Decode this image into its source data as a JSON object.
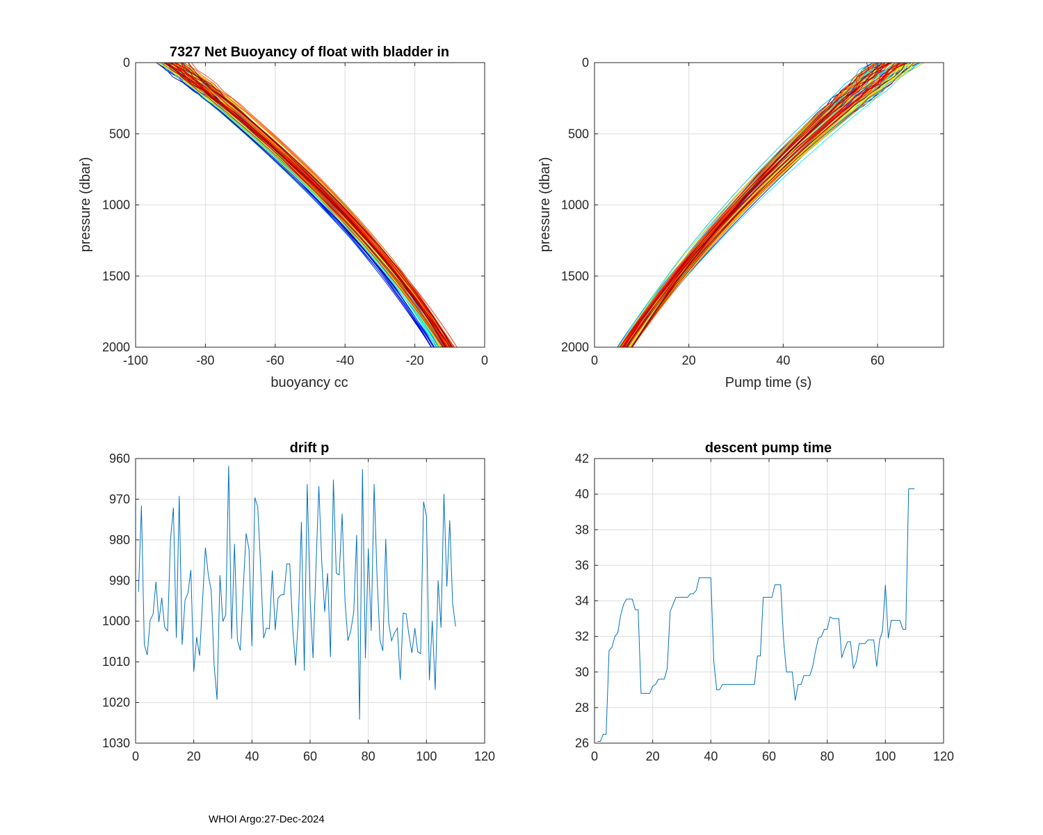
{
  "footer": "WHOI Argo:27-Dec-2024",
  "chart_data": [
    {
      "id": "buoyancy",
      "type": "line",
      "title": "7327 Net Buoyancy of float with bladder in",
      "xlabel": "buoyancy cc",
      "ylabel": "pressure (dbar)",
      "xlim": [
        -100,
        0
      ],
      "ylim": [
        0,
        2000
      ],
      "y_reversed": true,
      "xticks": [
        -100,
        -80,
        -60,
        -40,
        -20,
        0
      ],
      "yticks": [
        0,
        500,
        1000,
        1500,
        2000
      ],
      "grid": true,
      "colormap": "jet",
      "profile_count": 110,
      "profile_model": {
        "description": "each cycle profile: buoyancy(p) = b_surface + (b_2000 - b_surface) * f(p/2000), f concave; colored by cycle number (blue early, red late)",
        "b_surface_range": [
          -97,
          -82
        ],
        "b_2000_range": [
          -17,
          -6
        ],
        "curvature": 0.35
      }
    },
    {
      "id": "pumptime",
      "type": "line",
      "title": "",
      "xlabel": "Pump time (s)",
      "ylabel": "pressure (dbar)",
      "xlim": [
        0,
        74
      ],
      "ylim": [
        0,
        2000
      ],
      "y_reversed": true,
      "xticks": [
        0,
        20,
        40,
        60
      ],
      "yticks": [
        0,
        500,
        1000,
        1500,
        2000
      ],
      "grid": true,
      "colormap": "jet",
      "profile_count": 110,
      "profile_model": {
        "description": "each cycle profile: pump time decreasing with pressure, from ~55-74 s at surface to ~3-10 s at 2000 dbar; colored by cycle number",
        "t_surface_range": [
          55,
          73
        ],
        "t_2000_range": [
          4,
          9
        ],
        "curvature": 0.3
      }
    },
    {
      "id": "driftp",
      "type": "line",
      "title": "drift p",
      "xlabel": "",
      "ylabel": "",
      "xlim": [
        0,
        120
      ],
      "ylim": [
        960,
        1030
      ],
      "y_reversed": true,
      "xticks": [
        0,
        20,
        40,
        60,
        80,
        100,
        120
      ],
      "yticks": [
        960,
        970,
        980,
        990,
        1000,
        1010,
        1020,
        1030
      ],
      "grid": true,
      "color": "#0072BD",
      "x": [
        1,
        2,
        3,
        4,
        5,
        6,
        7,
        8,
        9,
        10,
        11,
        12,
        13,
        14,
        15,
        16,
        17,
        18,
        19,
        20,
        21,
        22,
        23,
        24,
        25,
        26,
        27,
        28,
        29,
        30,
        31,
        32,
        33,
        34,
        35,
        36,
        37,
        38,
        39,
        40,
        41,
        42,
        43,
        44,
        45,
        46,
        47,
        48,
        49,
        50,
        51,
        52,
        53,
        54,
        55,
        56,
        57,
        58,
        59,
        60,
        61,
        62,
        63,
        64,
        65,
        66,
        67,
        68,
        69,
        70,
        71,
        72,
        73,
        74,
        75,
        76,
        77,
        78,
        79,
        80,
        81,
        82,
        83,
        84,
        85,
        86,
        87,
        88,
        89,
        90,
        91,
        92,
        93,
        94,
        95,
        96,
        97,
        98,
        99,
        100,
        101,
        102,
        103,
        104,
        105,
        106,
        107,
        108,
        109,
        110
      ],
      "values": [
        992.8,
        971.6,
        1005.8,
        1008.3,
        999.8,
        998.3,
        990.3,
        1000.2,
        994.2,
        1001.5,
        1002.4,
        979.9,
        972.1,
        1004.1,
        969.2,
        1005.8,
        994.8,
        993.1,
        987.4,
        1012.4,
        1003.9,
        1008.5,
        995.3,
        981.9,
        988.6,
        992.5,
        1010.8,
        1019.3,
        988.7,
        1000.1,
        998.4,
        961.8,
        1004.4,
        981.0,
        1004.6,
        1007.2,
        992.1,
        978.4,
        982.4,
        1006.1,
        969.6,
        971.9,
        986.7,
        1004.2,
        1001.7,
        1001.9,
        987.5,
        1002.2,
        994.3,
        993.5,
        993.5,
        985.9,
        985.9,
        1001.6,
        1010.9,
        998.7,
        975.6,
        1012.2,
        966.3,
        994.4,
        1009.1,
        986.9,
        966.8,
        985.4,
        997.7,
        988.2,
        1008.8,
        965.2,
        988.2,
        988.6,
        973.6,
        995.1,
        1004.8,
        1002.3,
        997.7,
        978.8,
        1024.2,
        962.6,
        1009.1,
        982.1,
        1002.4,
        966.3,
        988.9,
        1004.6,
        1007.3,
        979.8,
        1000.4,
        1004.8,
        1002.9,
        1001.7,
        1014.4,
        998.0,
        998.2,
        1003.5,
        1007.8,
        1001.7,
        1007.5,
        1008.0,
        970.6,
        974.2,
        1014.5,
        999.9,
        1016.9,
        990.0,
        1001.6,
        968.7,
        991.5,
        975.2,
        995.7,
        1001.3
      ]
    },
    {
      "id": "descentpump",
      "type": "line",
      "title": "descent pump time",
      "xlabel": "",
      "ylabel": "",
      "xlim": [
        0,
        120
      ],
      "ylim": [
        26,
        42
      ],
      "y_reversed": false,
      "xticks": [
        0,
        20,
        40,
        60,
        80,
        100,
        120
      ],
      "yticks": [
        26,
        28,
        30,
        32,
        34,
        36,
        38,
        40,
        42
      ],
      "grid": true,
      "color": "#0072BD",
      "x": [
        1,
        2,
        3,
        4,
        5,
        6,
        7,
        8,
        9,
        10,
        11,
        12,
        13,
        14,
        15,
        16,
        17,
        18,
        19,
        20,
        21,
        22,
        23,
        24,
        25,
        26,
        27,
        28,
        29,
        30,
        31,
        32,
        33,
        34,
        35,
        36,
        37,
        38,
        39,
        40,
        41,
        42,
        43,
        44,
        45,
        46,
        47,
        48,
        49,
        50,
        51,
        52,
        53,
        54,
        55,
        56,
        57,
        58,
        59,
        60,
        61,
        62,
        63,
        64,
        65,
        66,
        67,
        68,
        69,
        70,
        71,
        72,
        73,
        74,
        75,
        76,
        77,
        78,
        79,
        80,
        81,
        82,
        83,
        84,
        85,
        86,
        87,
        88,
        89,
        90,
        91,
        92,
        93,
        94,
        95,
        96,
        97,
        98,
        99,
        100,
        101,
        102,
        103,
        104,
        105,
        106,
        107,
        108,
        109,
        110
      ],
      "values": [
        26.1,
        26.1,
        26.5,
        26.5,
        31.2,
        31.4,
        32.0,
        32.2,
        33.2,
        33.8,
        34.1,
        34.1,
        34.1,
        33.5,
        33.5,
        28.8,
        28.8,
        28.8,
        28.8,
        29.2,
        29.3,
        29.6,
        29.6,
        29.6,
        30.2,
        33.4,
        33.8,
        34.2,
        34.2,
        34.2,
        34.2,
        34.2,
        34.4,
        34.4,
        34.6,
        35.3,
        35.3,
        35.3,
        35.3,
        35.3,
        30.6,
        29.0,
        29.0,
        29.3,
        29.3,
        29.3,
        29.3,
        29.3,
        29.3,
        29.3,
        29.3,
        29.3,
        29.3,
        29.3,
        29.3,
        30.9,
        30.9,
        34.2,
        34.2,
        34.2,
        34.2,
        34.9,
        34.9,
        34.9,
        31.8,
        30.0,
        30.0,
        30.0,
        28.4,
        29.3,
        29.3,
        29.8,
        29.8,
        29.8,
        30.3,
        31.2,
        31.9,
        32.0,
        32.4,
        32.4,
        33.1,
        33.0,
        33.0,
        33.0,
        30.8,
        31.3,
        31.7,
        31.7,
        30.2,
        30.6,
        31.6,
        31.6,
        31.6,
        31.8,
        31.8,
        31.8,
        30.3,
        31.8,
        32.3,
        34.9,
        31.9,
        32.9,
        32.9,
        32.9,
        32.9,
        32.4,
        32.4,
        40.3,
        40.3,
        40.3
      ]
    }
  ]
}
